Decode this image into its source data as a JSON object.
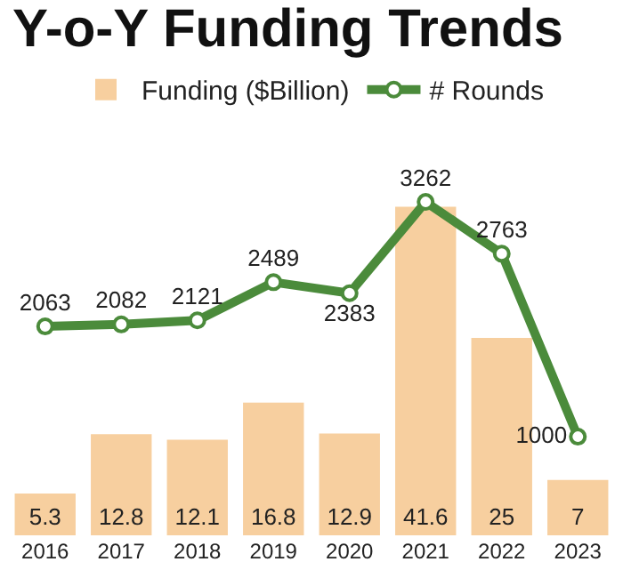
{
  "chart_data": {
    "type": "bar",
    "title": "Y-o-Y Funding Trends",
    "categories": [
      "2016",
      "2017",
      "2018",
      "2019",
      "2020",
      "2021",
      "2022",
      "2023"
    ],
    "series": [
      {
        "name": "Funding ($Billion)",
        "color": "#f7cf9f",
        "values": [
          5.3,
          12.8,
          12.1,
          16.8,
          12.9,
          41.6,
          25,
          7
        ]
      },
      {
        "name": "# Rounds",
        "type": "line",
        "axis": "y2",
        "color": "#4b8b3b",
        "marker": "circle",
        "line_style": "solid",
        "values": [
          2063,
          2082,
          2121,
          2489,
          2383,
          3262,
          2763,
          1000
        ]
      }
    ],
    "data_labels": true,
    "legend": "top",
    "grid": false
  }
}
